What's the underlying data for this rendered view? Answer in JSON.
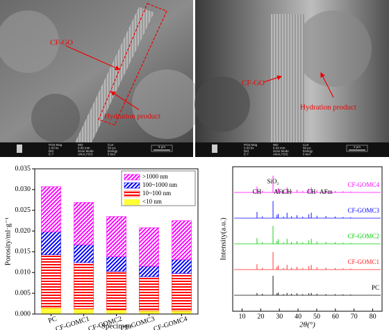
{
  "sem_images": [
    {
      "labels": [
        "CF-GO",
        "Hydration product"
      ],
      "values": [
        "2.00 kx",
        "9.96 mm",
        "50 pA",
        "E-T",
        "ANALYSIS",
        "5 keV"
      ],
      "scale_bar": "5 μm"
    },
    {
      "labels": [
        "CF-GO",
        "Hydration product"
      ],
      "values": [
        "5.00 kx",
        "8.69 mm",
        "50 pA",
        "E-T",
        "ANALYSIS",
        "5 keV"
      ],
      "scale_bar": "2 μm"
    }
  ],
  "info_fields": [
    "Print Mag",
    "WD",
    "Curr",
    "Det",
    "Scan Mode",
    "Energy"
  ],
  "chart_data": [
    {
      "type": "stacked_bar",
      "y_label": "Porosity/ml·g⁻¹",
      "x_label": "Specimen",
      "categories": [
        "PC",
        "CF-GOMC1",
        "CF-GOMC2",
        "CF-GOMC3",
        "CF-GOMC4"
      ],
      "series": [
        {
          "name": "<10 nm",
          "color": "#ffff33",
          "hatch": "none",
          "values": [
            0.0015,
            0.0012,
            0.001,
            0.0008,
            0.0008
          ]
        },
        {
          "name": "10~100 nm",
          "color": "#ff0000",
          "hatch": "horizontal",
          "values": [
            0.0128,
            0.0112,
            0.0093,
            0.0082,
            0.009
          ]
        },
        {
          "name": "100~1000 nm",
          "color": "#0000ff",
          "hatch": "diagonal",
          "values": [
            0.0055,
            0.0043,
            0.0035,
            0.0025,
            0.0033
          ]
        },
        {
          "name": ">1000 nm",
          "color": "#ff00ff",
          "hatch": "diagonal",
          "values": [
            0.0109,
            0.0102,
            0.0097,
            0.0093,
            0.0094
          ]
        }
      ],
      "ylim": [
        0,
        0.035
      ],
      "yticks": [
        {
          "value": 0,
          "label": "0.000"
        },
        0.005,
        {
          "value": 0.01,
          "label": "0.010"
        },
        0.015,
        {
          "value": 0.02,
          "label": "0.020"
        },
        0.025,
        {
          "value": 0.03,
          "label": "0.030"
        },
        0.035
      ],
      "legend": "upper right"
    },
    {
      "type": "xrd",
      "y_label": "Intensity(a.u.)",
      "x_label": "2θ(°)",
      "x": [
        18.0,
        20.9,
        26.6,
        28.7,
        29.4,
        32.2,
        34.1,
        36.5,
        39.4,
        42.5,
        45.8,
        47.1,
        50.1,
        54.9,
        59.9,
        64.1,
        68.2
      ],
      "series": [
        {
          "name": "PC",
          "color": "#000000",
          "values": [
            12,
            8,
            100,
            10,
            14,
            6,
            12,
            8,
            10,
            6,
            10,
            12,
            8,
            6,
            6,
            5,
            4
          ]
        },
        {
          "name": "CF-GOMC1",
          "color": "#ff2020",
          "values": [
            28,
            8,
            90,
            14,
            22,
            8,
            24,
            10,
            14,
            8,
            18,
            24,
            12,
            10,
            8,
            6,
            5
          ]
        },
        {
          "name": "CF-GOMC2",
          "color": "#00cc00",
          "values": [
            30,
            9,
            92,
            15,
            24,
            8,
            26,
            10,
            14,
            8,
            18,
            26,
            12,
            10,
            8,
            6,
            5
          ]
        },
        {
          "name": "CF-GOMC3",
          "color": "#0000ff",
          "values": [
            32,
            9,
            88,
            16,
            22,
            8,
            28,
            10,
            15,
            8,
            20,
            28,
            12,
            11,
            8,
            6,
            5
          ]
        },
        {
          "name": "CF-GOMC4",
          "color": "#ff00ff",
          "values": [
            30,
            8,
            86,
            15,
            22,
            8,
            26,
            10,
            14,
            8,
            19,
            26,
            12,
            10,
            8,
            6,
            5
          ]
        }
      ],
      "annotations": [
        {
          "text": "CH",
          "x": 18.0
        },
        {
          "text": "SiO₂",
          "x": 26.6
        },
        {
          "text": "AFt",
          "x": 29.6
        },
        {
          "text": "CH",
          "x": 34.1
        },
        {
          "text": "CH",
          "x": 47.1
        },
        {
          "text": "AFm",
          "x": 55
        }
      ],
      "xlim": [
        5,
        85
      ],
      "xticks": [
        10,
        20,
        30,
        40,
        50,
        60,
        70,
        80
      ]
    }
  ]
}
